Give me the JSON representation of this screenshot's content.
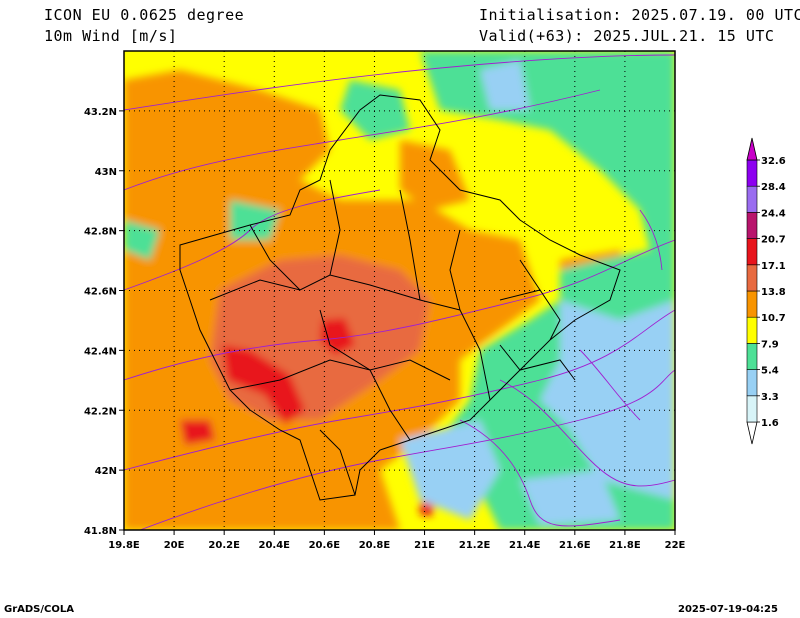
{
  "header": {
    "model": "ICON EU 0.0625 degree",
    "variable": "10m Wind [m/s]",
    "init": "Initialisation: 2025.07.19. 00 UTC",
    "valid": "Valid(+63): 2025.JUL.21. 15 UTC"
  },
  "footer": {
    "left": "GrADS/COLA",
    "right": "2025-07-19-04:25"
  },
  "chart_data": {
    "type": "heatmap",
    "xlim": [
      19.8,
      22.0
    ],
    "ylim": [
      41.8,
      43.4
    ],
    "x_ticks": [
      "19.8E",
      "20E",
      "20.2E",
      "20.4E",
      "20.6E",
      "20.8E",
      "21E",
      "21.2E",
      "21.4E",
      "21.6E",
      "21.8E",
      "22E"
    ],
    "x_tick_values": [
      19.8,
      20.0,
      20.2,
      20.4,
      20.6,
      20.8,
      21.0,
      21.2,
      21.4,
      21.6,
      21.8,
      22.0
    ],
    "y_ticks": [
      "41.8N",
      "42N",
      "42.2N",
      "42.4N",
      "42.6N",
      "42.8N",
      "43N",
      "43.2N"
    ],
    "y_tick_values": [
      41.8,
      42.0,
      42.2,
      42.4,
      42.6,
      42.8,
      43.0,
      43.2
    ],
    "grid": true,
    "colorbar": {
      "labels": [
        "1.6",
        "3.3",
        "5.4",
        "7.9",
        "10.7",
        "13.8",
        "17.1",
        "20.7",
        "24.4",
        "28.4",
        "32.6"
      ],
      "colors": [
        "#ffffff",
        "#d8f4f8",
        "#98d0f4",
        "#4ee096",
        "#ffff00",
        "#f89400",
        "#e86a40",
        "#e8141c",
        "#b8146c",
        "#9a6cf0",
        "#8c00f0",
        "#c800c8"
      ]
    }
  }
}
